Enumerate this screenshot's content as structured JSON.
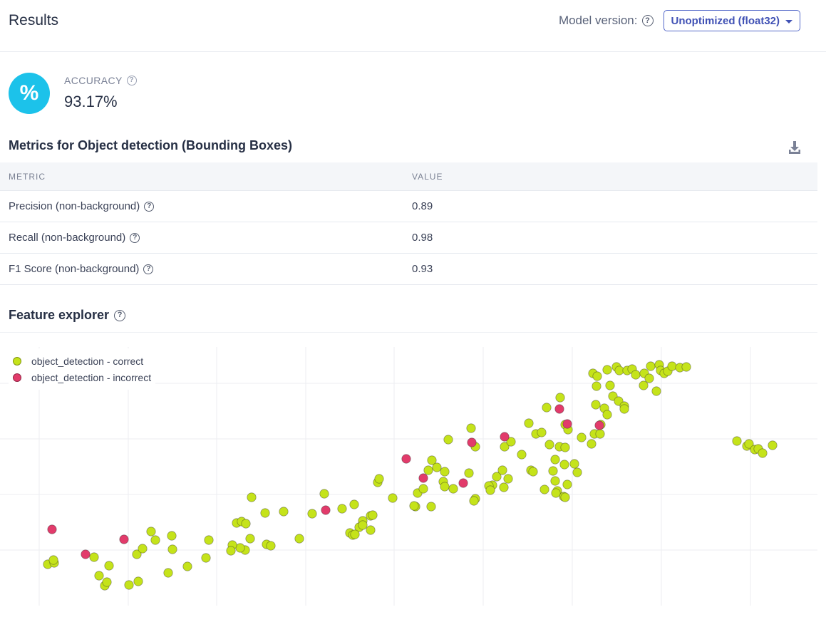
{
  "header": {
    "title": "Results",
    "model_version_label": "Model version:",
    "model_version_value": "Unoptimized (float32)"
  },
  "accuracy": {
    "icon_symbol": "%",
    "label": "ACCURACY",
    "value": "93.17%",
    "icon_color": "#1cc2ea"
  },
  "metrics": {
    "title": "Metrics for Object detection (Bounding Boxes)",
    "columns": [
      "METRIC",
      "VALUE"
    ],
    "rows": [
      {
        "metric": "Precision (non-background)",
        "value": "0.89"
      },
      {
        "metric": "Recall (non-background)",
        "value": "0.98"
      },
      {
        "metric": "F1 Score (non-background)",
        "value": "0.93"
      }
    ]
  },
  "feature_explorer": {
    "title": "Feature explorer"
  },
  "chart_data": {
    "type": "scatter",
    "grid": true,
    "legend_position": "top-left",
    "x_range": [
      0,
      1159
    ],
    "y_range": [
      0,
      380
    ],
    "series": [
      {
        "name": "object_detection - correct",
        "color": "#c5e31a",
        "points": [
          [
            67,
            325
          ],
          [
            76,
            323
          ],
          [
            75,
            319
          ],
          [
            132,
            315
          ],
          [
            153,
            327
          ],
          [
            139,
            341
          ],
          [
            147,
            355
          ],
          [
            150,
            350
          ],
          [
            181,
            354
          ],
          [
            194,
            349
          ],
          [
            192,
            311
          ],
          [
            200,
            303
          ],
          [
            212,
            279
          ],
          [
            218,
            291
          ],
          [
            241,
            285
          ],
          [
            242,
            304
          ],
          [
            236,
            337
          ],
          [
            263,
            328
          ],
          [
            289,
            316
          ],
          [
            293,
            291
          ],
          [
            332,
            267
          ],
          [
            339,
            265
          ],
          [
            345,
            268
          ],
          [
            353,
            231
          ],
          [
            372,
            253
          ],
          [
            398,
            251
          ],
          [
            351,
            289
          ],
          [
            344,
            305
          ],
          [
            337,
            302
          ],
          [
            326,
            298
          ],
          [
            324,
            306
          ],
          [
            374,
            297
          ],
          [
            380,
            299
          ],
          [
            420,
            289
          ],
          [
            438,
            254
          ],
          [
            455,
            226
          ],
          [
            480,
            247
          ],
          [
            497,
            241
          ],
          [
            509,
            264
          ],
          [
            504,
            273
          ],
          [
            520,
            257
          ],
          [
            523,
            256
          ],
          [
            520,
            277
          ],
          [
            491,
            281
          ],
          [
            495,
            284
          ],
          [
            498,
            283
          ],
          [
            509,
            270
          ],
          [
            551,
            232
          ],
          [
            530,
            210
          ],
          [
            532,
            205
          ],
          [
            586,
            225
          ],
          [
            583,
            244
          ],
          [
            605,
            244
          ],
          [
            581,
            243
          ],
          [
            594,
            219
          ],
          [
            601,
            193
          ],
          [
            606,
            179
          ],
          [
            613,
            189
          ],
          [
            624,
            195
          ],
          [
            629,
            150
          ],
          [
            622,
            209
          ],
          [
            624,
            216
          ],
          [
            636,
            219
          ],
          [
            658,
            197
          ],
          [
            661,
            134
          ],
          [
            667,
            160
          ],
          [
            667,
            233
          ],
          [
            665,
            236
          ],
          [
            691,
            214
          ],
          [
            697,
            202
          ],
          [
            686,
            215
          ],
          [
            688,
            221
          ],
          [
            705,
            193
          ],
          [
            713,
            205
          ],
          [
            707,
            217
          ],
          [
            708,
            160
          ],
          [
            717,
            153
          ],
          [
            732,
            171
          ],
          [
            745,
            193
          ],
          [
            742,
            127
          ],
          [
            752,
            142
          ],
          [
            760,
            140
          ],
          [
            771,
            157
          ],
          [
            767,
            105
          ],
          [
            786,
            91
          ],
          [
            793,
            129
          ],
          [
            797,
            136
          ],
          [
            785,
            160
          ],
          [
            793,
            161
          ],
          [
            779,
            178
          ],
          [
            792,
            185
          ],
          [
            806,
            184
          ],
          [
            810,
            196
          ],
          [
            779,
            208
          ],
          [
            782,
            222
          ],
          [
            791,
            230
          ],
          [
            793,
            231
          ],
          [
            796,
            213
          ],
          [
            776,
            194
          ],
          [
            748,
            195
          ],
          [
            764,
            220
          ],
          [
            780,
            225
          ],
          [
            816,
            147
          ],
          [
            830,
            156
          ],
          [
            834,
            142
          ],
          [
            842,
            142
          ],
          [
            836,
            101
          ],
          [
            848,
            106
          ],
          [
            852,
            115
          ],
          [
            843,
            129
          ],
          [
            837,
            75
          ],
          [
            856,
            74
          ],
          [
            860,
            89
          ],
          [
            868,
            96
          ],
          [
            876,
            103
          ],
          [
            876,
            107
          ],
          [
            832,
            57
          ],
          [
            838,
            61
          ],
          [
            852,
            52
          ],
          [
            865,
            48
          ],
          [
            869,
            53
          ],
          [
            880,
            53
          ],
          [
            887,
            51
          ],
          [
            892,
            59
          ],
          [
            904,
            57
          ],
          [
            911,
            64
          ],
          [
            913,
            47
          ],
          [
            925,
            45
          ],
          [
            927,
            53
          ],
          [
            932,
            57
          ],
          [
            937,
            54
          ],
          [
            943,
            47
          ],
          [
            954,
            49
          ],
          [
            963,
            48
          ],
          [
            921,
            82
          ],
          [
            903,
            74
          ],
          [
            1034,
            152
          ],
          [
            1048,
            159
          ],
          [
            1051,
            156
          ],
          [
            1059,
            164
          ],
          [
            1064,
            163
          ],
          [
            1070,
            169
          ],
          [
            1084,
            158
          ]
        ]
      },
      {
        "name": "object_detection - incorrect",
        "color": "#e23b6b",
        "points": [
          [
            73,
            276
          ],
          [
            120,
            311
          ],
          [
            174,
            290
          ],
          [
            457,
            249
          ],
          [
            570,
            177
          ],
          [
            594,
            204
          ],
          [
            650,
            211
          ],
          [
            662,
            154
          ],
          [
            708,
            146
          ],
          [
            785,
            107
          ],
          [
            796,
            128
          ],
          [
            841,
            130
          ]
        ]
      }
    ]
  }
}
